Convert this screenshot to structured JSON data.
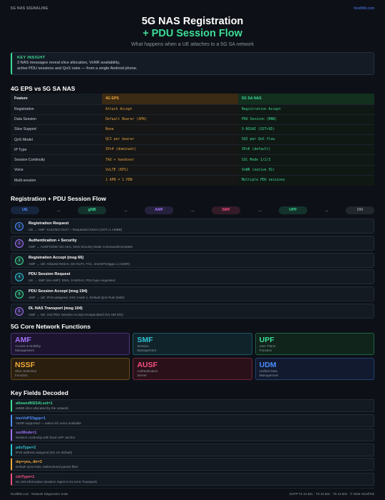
{
  "header": {
    "brand": "5G NAS SIGNALING",
    "site": "hicellbtk.com"
  },
  "hero": {
    "title_line1": "5G NAS Registration",
    "title_line2": "+ PDU Session Flow",
    "subtitle": "What happens when a UE attaches to a 5G SA network"
  },
  "insight": {
    "label": "KEY INSIGHT",
    "line1": "3 NAS messages reveal slice allocation, VoNR availability,",
    "line2": "active PDU sessions and QoS rules — from a single Android phone."
  },
  "comparison": {
    "title": "4G EPS vs 5G SA NAS",
    "headers": [
      "Feature",
      "4G EPS",
      "5G SA NAS"
    ],
    "rows": [
      [
        "Registration",
        "Attach Accept",
        "Registration Accept"
      ],
      [
        "Data Session",
        "Default Bearer (APN)",
        "PDU Session (DNN)"
      ],
      [
        "Slice Support",
        "None",
        "S-NSSAI (SST+SD)"
      ],
      [
        "QoS Model",
        "QCI per bearer",
        "5QI per QoS flow"
      ],
      [
        "IP Type",
        "IPv4 (dominant)",
        "IPv6 (default)"
      ],
      [
        "Session Continuity",
        "TAU + handover",
        "SSC Mode 1/2/3"
      ],
      [
        "Voice",
        "VoLTE (EPS)",
        "VoNR (native 5G)"
      ],
      [
        "Multi-session",
        "1 APN = 1 PDN",
        "Multiple PDU sessions"
      ]
    ]
  },
  "flow": {
    "title": "Registration + PDU Session Flow",
    "nodes": [
      {
        "label": "UE",
        "color": "#4c8dff"
      },
      {
        "label": "gNB",
        "color": "#3ddc97"
      },
      {
        "label": "AMF",
        "color": "#a371f7"
      },
      {
        "label": "SMF",
        "color": "#f85180"
      },
      {
        "label": "UPF",
        "color": "#3ddc97"
      },
      {
        "label": "DN",
        "color": "#8b949e"
      }
    ],
    "steps": [
      {
        "num": "1",
        "title": "Registration Request",
        "desc": "UE → AMF: SUCI/5G-GUTI + Requested NSSAI (SST=1 eMBB)",
        "color": "#4c8dff"
      },
      {
        "num": "2",
        "title": "Authentication + Security",
        "desc": "AMF ↔ AUSF/UDM: 5G-AKA, NAS Security Mode Command/Complete",
        "color": "#a371f7"
      },
      {
        "num": "3",
        "title": "Registration Accept (msg 66)",
        "desc": "AMF → UE: Allowed NSSAI, 5G-GUTI, TAC, imsVoPS3gpp=1 (VoNR)",
        "color": "#3ddc97"
      },
      {
        "num": "4",
        "title": "PDU Session Request",
        "desc": "UE → SMF (via AMF): DNN, S-NSSAI, PDU type requested",
        "color": "#2ec4d6"
      },
      {
        "num": "5",
        "title": "PDU Session Accept (msg 194)",
        "desc": "SMF → UE: IPv6 assigned, SSC mode 1, Default QoS Rule (bidir)",
        "color": "#3ddc97"
      },
      {
        "num": "6",
        "title": "DL NAS Transport (msg 104)",
        "desc": "AMF → UE: 2nd PDU Session Accept encapsulated (N1 SM info)",
        "color": "#a371f7"
      }
    ]
  },
  "core": {
    "title": "5G Core Network Functions",
    "functions": [
      {
        "name": "AMF",
        "line1": "Access & Mobility",
        "line2": "Management",
        "color": "#a371f7",
        "bg": "#1d1530"
      },
      {
        "name": "SMF",
        "line1": "Session",
        "line2": "Management",
        "color": "#2ec4d6",
        "bg": "#11232a"
      },
      {
        "name": "UPF",
        "line1": "User Plane",
        "line2": "Function",
        "color": "#3ddc97",
        "bg": "#10241b"
      },
      {
        "name": "NSSF",
        "line1": "Slice Selection",
        "line2": "Function",
        "color": "#f0a93b",
        "bg": "#2a1f0f"
      },
      {
        "name": "AUSF",
        "line1": "Authentication",
        "line2": "Server",
        "color": "#f85180",
        "bg": "#2a1119"
      },
      {
        "name": "UDM",
        "line1": "Unified Data",
        "line2": "Management",
        "color": "#4c8dff",
        "bg": "#111a2e"
      }
    ]
  },
  "fields": {
    "title": "Key Fields Decoded",
    "items": [
      {
        "name": "allowedNSSAI.sst=1",
        "desc": "eMBB slice allocated by the network",
        "color": "#3ddc97"
      },
      {
        "name": "imsVoPS3gpp=1",
        "desc": "VoNR supported — native 5G voice available",
        "color": "#4c8dff"
      },
      {
        "name": "sscMode=1",
        "desc": "Session continuity with fixed UPF anchor",
        "color": "#a371f7"
      },
      {
        "name": "pduType=2",
        "desc": "IPv6 address assigned (5G SA default)",
        "color": "#2ec4d6"
      },
      {
        "name": "dqr=yes, dir=3",
        "desc": "Default QoS Rule, bidirectional packet filter",
        "color": "#f0a93b"
      },
      {
        "name": "ctnType=1",
        "desc": "N1 SM information (session mgmt in DL NAS Transport)",
        "color": "#f85180"
      }
    ]
  },
  "footer": {
    "left": "hicellbtk.com  ·  Network Diagnostics Suite",
    "right": "3GPP TS 24.501 · TS 23.501 · TS 23.502  ·  © 2026 HiCellTek"
  }
}
